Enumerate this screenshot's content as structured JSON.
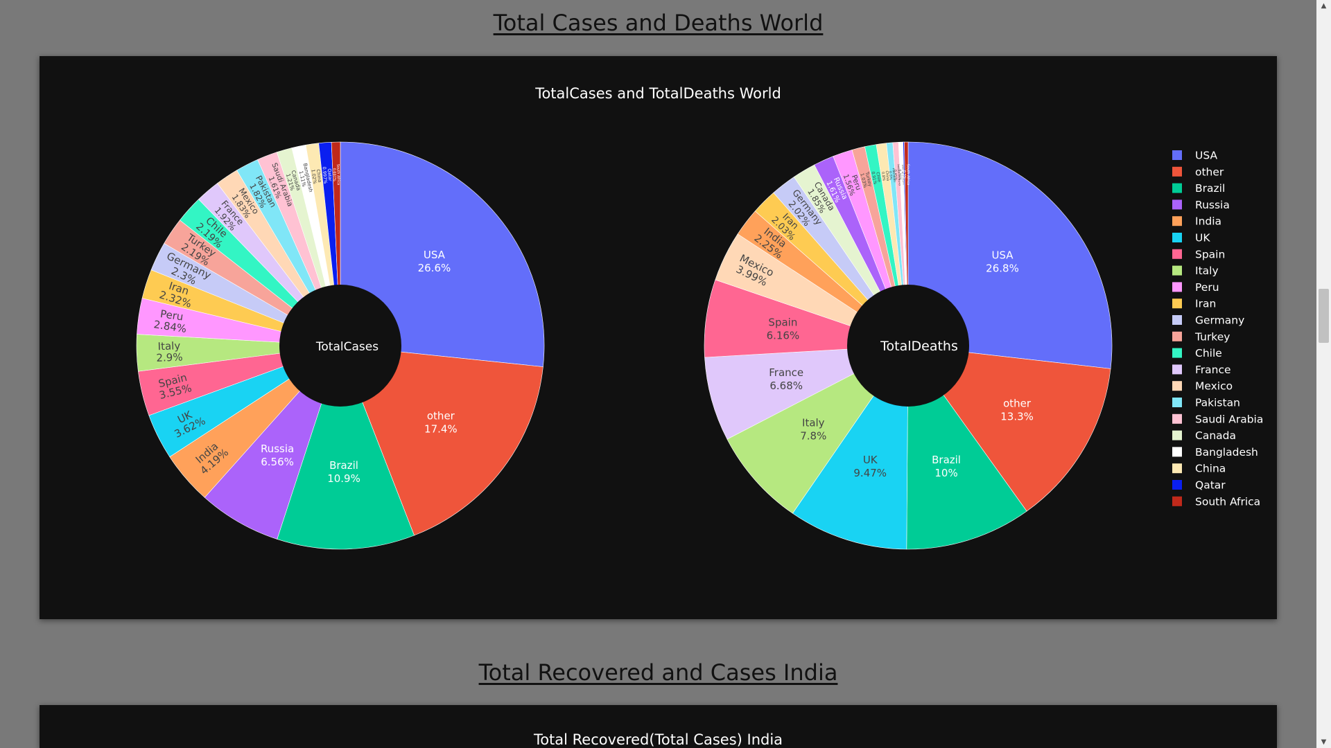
{
  "page": {
    "heading_world": "Total Cases and Deaths World",
    "heading_india": "Total Recovered and Cases India"
  },
  "panel_world": {
    "title": "TotalCases and TotalDeaths World"
  },
  "panel_india": {
    "title": "Total Recovered(Total Cases) India"
  },
  "chart_data": [
    {
      "type": "pie",
      "title": "TotalCases and TotalDeaths World",
      "center_label": "TotalCases",
      "hole": true,
      "legend_position": "right",
      "labels": [
        "USA",
        "other",
        "Brazil",
        "Russia",
        "India",
        "UK",
        "Spain",
        "Italy",
        "Peru",
        "Iran",
        "Germany",
        "Turkey",
        "Chile",
        "France",
        "Mexico",
        "Pakistan",
        "Saudi Arabia",
        "Canada",
        "Bangladesh",
        "China",
        "Qatar",
        "South Africa"
      ],
      "values": [
        26.6,
        17.4,
        10.9,
        6.56,
        4.19,
        3.62,
        3.55,
        2.9,
        2.84,
        2.32,
        2.3,
        2.19,
        2.19,
        1.92,
        1.83,
        1.82,
        1.61,
        1.21,
        1.11,
        1.02,
        0.997,
        0.697
      ],
      "colors": [
        "#636efa",
        "#ef553b",
        "#00cc96",
        "#ab63fa",
        "#ffa15a",
        "#19d3f3",
        "#ff6692",
        "#b6e880",
        "#ff97ff",
        "#fecb52",
        "#c6cbf7",
        "#f7a49a",
        "#33f5c4",
        "#e0c8fb",
        "#ffd8b6",
        "#80e6f7",
        "#ffc2d3",
        "#e5f4d0",
        "#ffffff",
        "#fde9b3",
        "#0a1ff0",
        "#c0291b"
      ]
    },
    {
      "type": "pie",
      "title": "TotalCases and TotalDeaths World",
      "center_label": "TotalDeaths",
      "hole": true,
      "legend_position": "right",
      "labels": [
        "USA",
        "other",
        "Brazil",
        "UK",
        "Italy",
        "France",
        "Spain",
        "Mexico",
        "India",
        "Iran",
        "Germany",
        "Canada",
        "Russia",
        "Peru",
        "Turkey",
        "Chile",
        "China",
        "Pakistan",
        "Saudi Arabia",
        "Bangladesh",
        "Qatar",
        "South Africa"
      ],
      "values": [
        26.8,
        13.3,
        10,
        9.47,
        7.8,
        6.68,
        6.16,
        3.99,
        2.25,
        2.03,
        2.02,
        1.85,
        1.61,
        1.56,
        1.03,
        0.91,
        0.8,
        0.5,
        0.45,
        0.35,
        0.1,
        0.3
      ],
      "colors": [
        "#636efa",
        "#ef553b",
        "#00cc96",
        "#19d3f3",
        "#b6e880",
        "#e0c8fb",
        "#ff6692",
        "#ffd8b6",
        "#ffa15a",
        "#fecb52",
        "#c6cbf7",
        "#e5f4d0",
        "#ab63fa",
        "#ff97ff",
        "#f7a49a",
        "#33f5c4",
        "#fde9b3",
        "#80e6f7",
        "#ffc2d3",
        "#ffffff",
        "#0a1ff0",
        "#c0291b"
      ]
    }
  ],
  "legend": {
    "items": [
      {
        "label": "USA",
        "color": "#636efa"
      },
      {
        "label": "other",
        "color": "#ef553b"
      },
      {
        "label": "Brazil",
        "color": "#00cc96"
      },
      {
        "label": "Russia",
        "color": "#ab63fa"
      },
      {
        "label": "India",
        "color": "#ffa15a"
      },
      {
        "label": "UK",
        "color": "#19d3f3"
      },
      {
        "label": "Spain",
        "color": "#ff6692"
      },
      {
        "label": "Italy",
        "color": "#b6e880"
      },
      {
        "label": "Peru",
        "color": "#ff97ff"
      },
      {
        "label": "Iran",
        "color": "#fecb52"
      },
      {
        "label": "Germany",
        "color": "#c6cbf7"
      },
      {
        "label": "Turkey",
        "color": "#f7a49a"
      },
      {
        "label": "Chile",
        "color": "#33f5c4"
      },
      {
        "label": "France",
        "color": "#e0c8fb"
      },
      {
        "label": "Mexico",
        "color": "#ffd8b6"
      },
      {
        "label": "Pakistan",
        "color": "#80e6f7"
      },
      {
        "label": "Saudi Arabia",
        "color": "#ffc2d3"
      },
      {
        "label": "Canada",
        "color": "#e5f4d0"
      },
      {
        "label": "Bangladesh",
        "color": "#ffffff"
      },
      {
        "label": "China",
        "color": "#fde9b3"
      },
      {
        "label": "Qatar",
        "color": "#0a1ff0"
      },
      {
        "label": "South Africa",
        "color": "#c0291b"
      }
    ]
  }
}
